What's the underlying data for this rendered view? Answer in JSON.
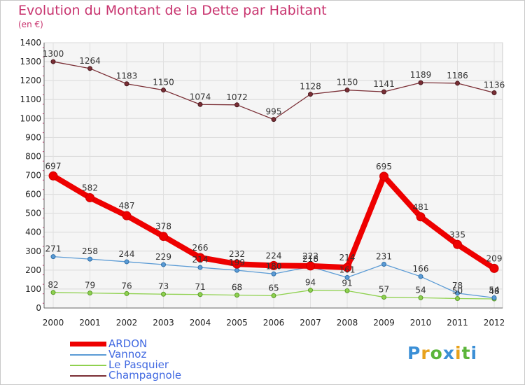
{
  "header": {
    "title": "Evolution du Montant de la Dette par Habitant",
    "subtitle": "(en €)"
  },
  "logo": {
    "text": "Proxiti"
  },
  "chart_data": {
    "type": "line",
    "title": "Evolution du Montant de la Dette par Habitant",
    "subtitle": "(en €)",
    "xlabel": "",
    "ylabel": "",
    "categories": [
      "2000",
      "2001",
      "2002",
      "2003",
      "2004",
      "2005",
      "2006",
      "2007",
      "2008",
      "2009",
      "2010",
      "2011",
      "2012"
    ],
    "ylim": [
      0,
      1400
    ],
    "yticks": [
      0,
      100,
      200,
      300,
      400,
      500,
      600,
      700,
      800,
      900,
      1000,
      1100,
      1200,
      1300,
      1400
    ],
    "grid": true,
    "legend_position": "bottom-left",
    "series": [
      {
        "name": "ARDON",
        "color": "#ee0000",
        "values": [
          697,
          582,
          487,
          378,
          266,
          232,
          224,
          222,
          214,
          695,
          481,
          335,
          209
        ]
      },
      {
        "name": "Vannoz",
        "color": "#5b9bd5",
        "values": [
          271,
          258,
          244,
          229,
          214,
          199,
          180,
          218,
          161,
          231,
          166,
          78,
          54
        ]
      },
      {
        "name": "Le Pasquier",
        "color": "#8fd14f",
        "values": [
          82,
          79,
          76,
          73,
          71,
          68,
          65,
          94,
          91,
          57,
          54,
          50,
          48
        ]
      },
      {
        "name": "Champagnole",
        "color": "#7a2e35",
        "values": [
          1300,
          1264,
          1183,
          1150,
          1074,
          1072,
          995,
          1128,
          1150,
          1141,
          1189,
          1186,
          1136
        ]
      }
    ]
  }
}
